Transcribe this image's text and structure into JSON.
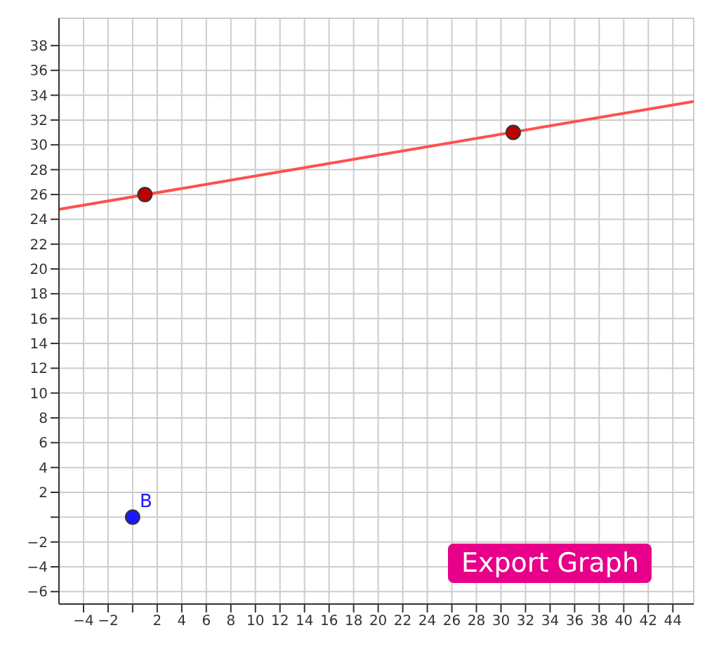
{
  "chart_data": {
    "type": "scatter",
    "xlim": [
      -6,
      45.7
    ],
    "ylim": [
      -7,
      40.2
    ],
    "xticks": [
      -4,
      -2,
      {
        "value": 0,
        "label": null
      },
      2,
      4,
      6,
      8,
      10,
      12,
      14,
      16,
      18,
      20,
      22,
      24,
      26,
      28,
      30,
      32,
      34,
      36,
      38,
      40,
      42,
      44
    ],
    "yticks": [
      -6,
      -4,
      -2,
      {
        "value": 0,
        "label": null
      },
      2,
      4,
      6,
      8,
      10,
      12,
      14,
      16,
      18,
      20,
      22,
      24,
      26,
      28,
      30,
      32,
      34,
      36,
      38
    ],
    "grid": true,
    "legend": false,
    "annotations": [
      "Export Graph"
    ],
    "series": [
      {
        "type": "line",
        "color": "#ff5050",
        "x": [
          -6,
          45.7
        ],
        "values": [
          24.8,
          33.5
        ],
        "marker": "none"
      },
      {
        "color": "#c00000",
        "x": [
          1,
          31
        ],
        "values": [
          26,
          31
        ],
        "marker": "circle"
      },
      {
        "name": "B",
        "color": "#1a1aff",
        "x": [
          0
        ],
        "values": [
          0
        ],
        "marker": "circle"
      }
    ]
  }
}
